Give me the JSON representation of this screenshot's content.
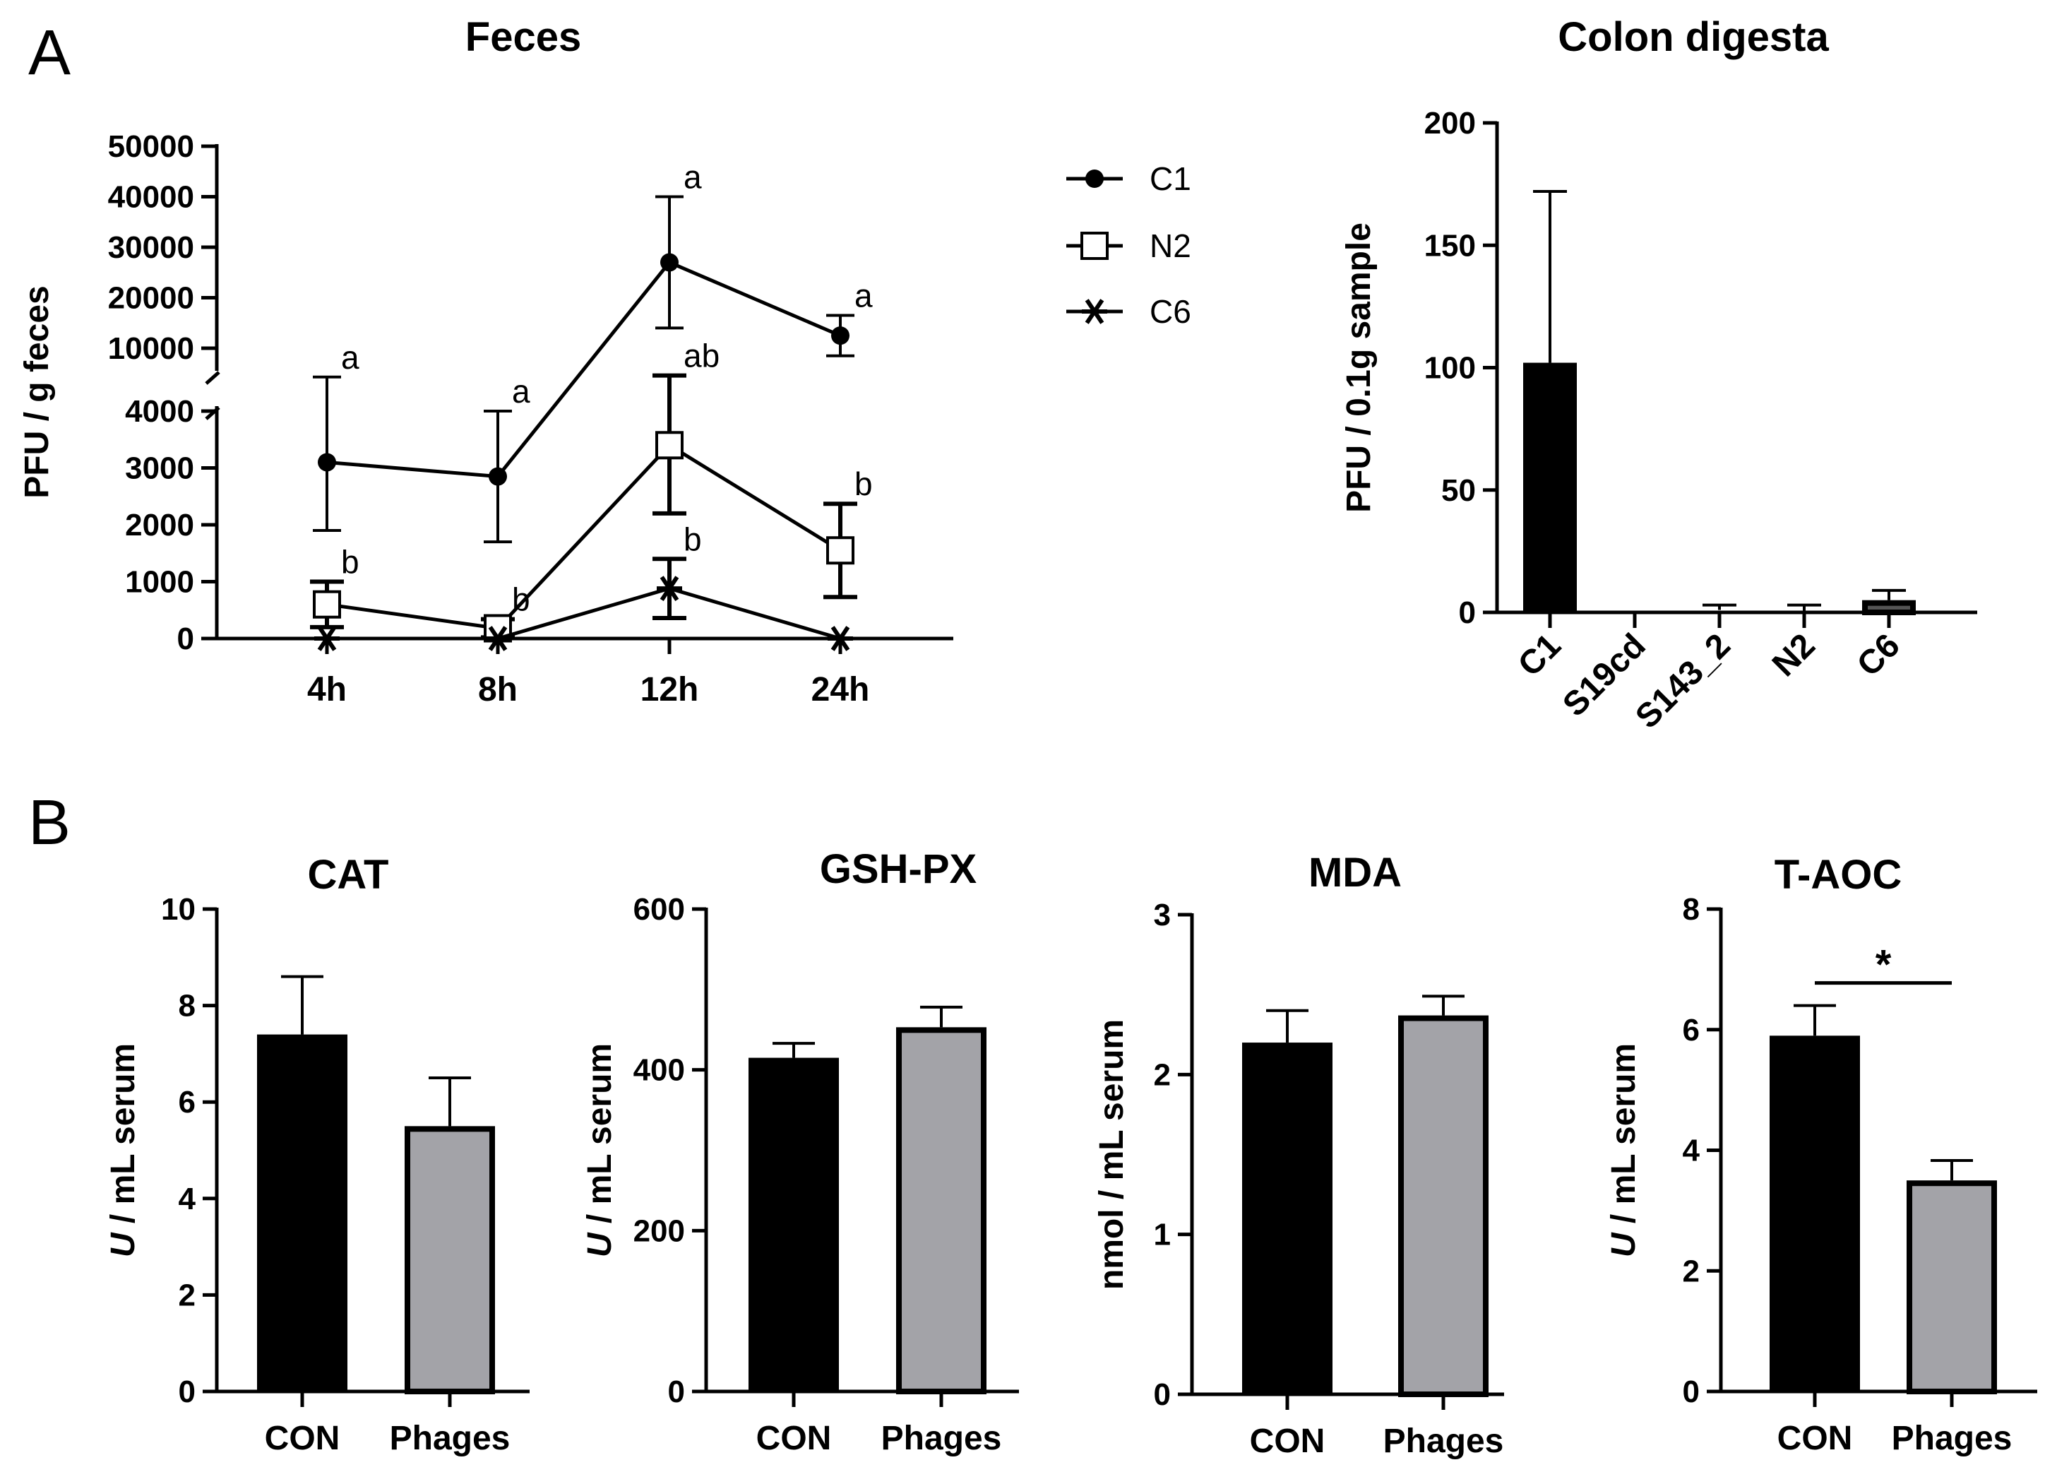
{
  "panels": {
    "A": "A",
    "B": "B"
  },
  "chart_data": [
    {
      "id": "feces",
      "type": "line",
      "title": "Feces",
      "ylabel": "PFU / g feces",
      "xlabel": "",
      "categories": [
        "4h",
        "8h",
        "12h",
        "24h"
      ],
      "y_axis_broken": true,
      "lower_segment": {
        "ylim": [
          0,
          4000
        ],
        "ticks": [
          "0",
          "1000",
          "2000",
          "3000",
          "4000"
        ]
      },
      "upper_segment": {
        "ylim": [
          10000,
          50000
        ],
        "ticks": [
          "10000",
          "20000",
          "30000",
          "40000",
          "50000"
        ]
      },
      "series": [
        {
          "name": "C1",
          "marker": "filled-circle",
          "values": [
            3100,
            2850,
            27000,
            12500
          ],
          "errors": [
            1200,
            1150,
            13000,
            4000
          ],
          "labels": [
            "a",
            "a",
            "a",
            "a"
          ]
        },
        {
          "name": "N2",
          "marker": "open-square",
          "values": [
            600,
            180,
            3400,
            1550
          ],
          "errors": [
            400,
            160,
            1200,
            820
          ],
          "labels": [
            "b",
            "b",
            "ab",
            "b"
          ]
        },
        {
          "name": "C6",
          "marker": "asterisk",
          "values": [
            0,
            0,
            880,
            0
          ],
          "errors": [
            0,
            0,
            520,
            0
          ],
          "labels": [
            "",
            "",
            "b",
            ""
          ]
        }
      ],
      "legend_position": "right"
    },
    {
      "id": "colon",
      "type": "bar",
      "title": "Colon digesta",
      "ylabel": "PFU / 0.1g sample",
      "xlabel": "",
      "categories": [
        "C1",
        "S19cd",
        "S143_2",
        "N2",
        "C6"
      ],
      "values": [
        102,
        0,
        1,
        0,
        5
      ],
      "errors": [
        70,
        0,
        2,
        3,
        4
      ],
      "ylim": [
        0,
        200
      ],
      "yticks": [
        "0",
        "50",
        "100",
        "150",
        "200"
      ],
      "bar_colors": [
        "#000000",
        "#000000",
        "#555555",
        "#555555",
        "#555555"
      ]
    },
    {
      "id": "cat",
      "type": "bar",
      "title": "CAT",
      "ylabel_italic": "U",
      "ylabel_rest": " / mL serum",
      "categories": [
        "CON",
        "Phages"
      ],
      "values": [
        7.4,
        5.5
      ],
      "errors": [
        1.2,
        1.0
      ],
      "ylim": [
        0,
        10
      ],
      "yticks": [
        "0",
        "2",
        "4",
        "6",
        "8",
        "10"
      ],
      "bar_colors": [
        "#000000",
        "#a3a3a8"
      ],
      "significance": ""
    },
    {
      "id": "gshpx",
      "type": "bar",
      "title": "GSH-PX",
      "ylabel_italic": "U",
      "ylabel_rest": " / mL serum",
      "categories": [
        "CON",
        "Phages"
      ],
      "values": [
        415,
        453
      ],
      "errors": [
        18,
        25
      ],
      "ylim": [
        0,
        600
      ],
      "yticks": [
        "0",
        "200",
        "400",
        "600"
      ],
      "bar_colors": [
        "#000000",
        "#a3a3a8"
      ],
      "significance": ""
    },
    {
      "id": "mda",
      "type": "bar",
      "title": "MDA",
      "ylabel_italic": "",
      "ylabel_rest": "nmol / mL serum",
      "categories": [
        "CON",
        "Phages"
      ],
      "values": [
        2.2,
        2.37
      ],
      "errors": [
        0.2,
        0.12
      ],
      "ylim": [
        0,
        3
      ],
      "yticks": [
        "0",
        "1",
        "2",
        "3"
      ],
      "bar_colors": [
        "#000000",
        "#a3a3a8"
      ],
      "significance": ""
    },
    {
      "id": "taoc",
      "type": "bar",
      "title": "T-AOC",
      "ylabel_italic": "U",
      "ylabel_rest": " / mL serum",
      "categories": [
        "CON",
        "Phages"
      ],
      "values": [
        5.9,
        3.5
      ],
      "errors": [
        0.5,
        0.33
      ],
      "ylim": [
        0,
        8
      ],
      "yticks": [
        "0",
        "2",
        "4",
        "6",
        "8"
      ],
      "bar_colors": [
        "#000000",
        "#a3a3a8"
      ],
      "significance": "*"
    }
  ]
}
